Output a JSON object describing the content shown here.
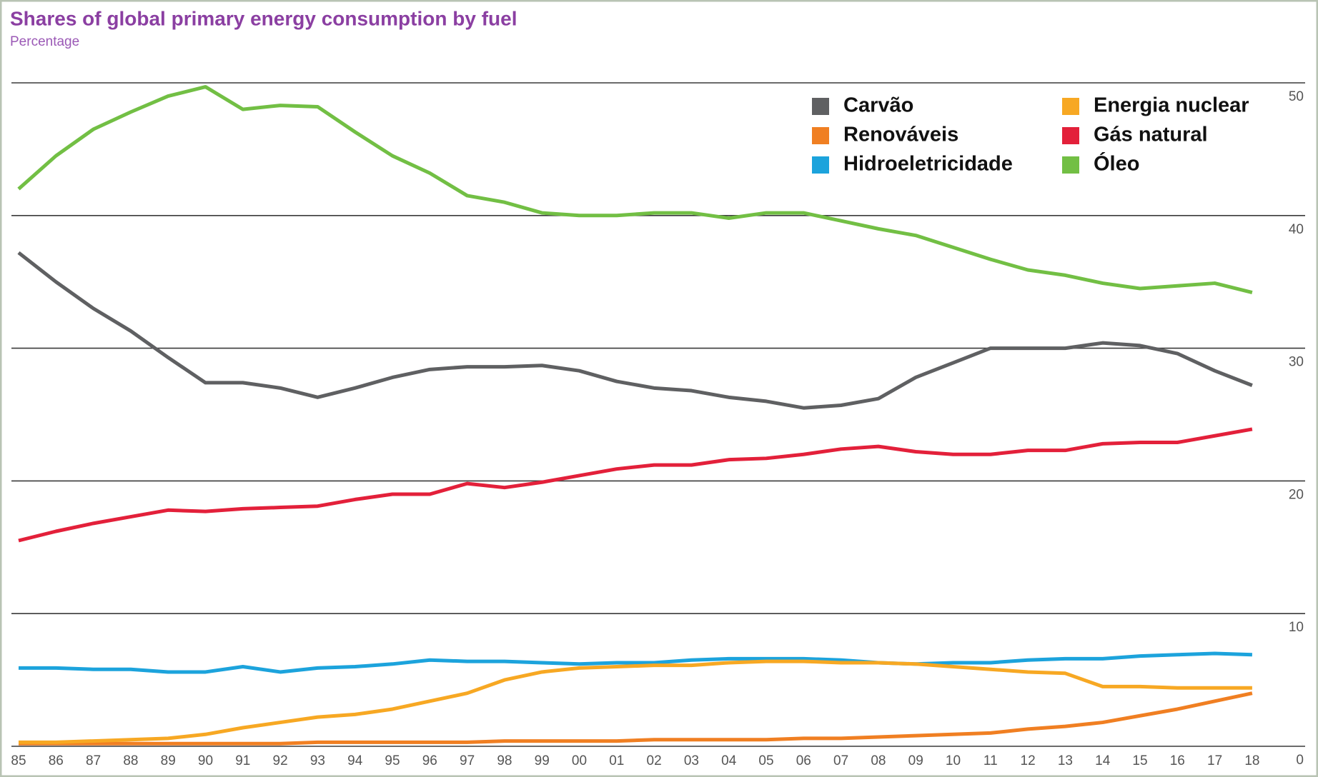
{
  "chart_data": {
    "type": "line",
    "title": "Shares of global primary energy consumption by fuel",
    "subtitle": "Percentage",
    "categories": [
      "85",
      "86",
      "87",
      "88",
      "89",
      "90",
      "91",
      "92",
      "93",
      "94",
      "95",
      "96",
      "97",
      "98",
      "99",
      "00",
      "01",
      "02",
      "03",
      "04",
      "05",
      "06",
      "07",
      "08",
      "09",
      "10",
      "11",
      "12",
      "13",
      "14",
      "15",
      "16",
      "17",
      "18"
    ],
    "series": [
      {
        "name": "Carvão",
        "color": "#5f6062",
        "values": [
          37.2,
          35.0,
          33.0,
          31.3,
          29.3,
          27.4,
          27.4,
          27.0,
          26.3,
          27.0,
          27.8,
          28.4,
          28.6,
          28.6,
          28.7,
          28.3,
          27.5,
          27.0,
          26.8,
          26.3,
          26.0,
          25.5,
          25.7,
          26.2,
          27.8,
          28.9,
          30.0,
          30.0,
          30.0,
          30.4,
          30.2,
          29.6,
          28.3,
          27.2
        ]
      },
      {
        "name": "Renováveis",
        "color": "#f07f22",
        "values": [
          0.2,
          0.2,
          0.2,
          0.2,
          0.2,
          0.2,
          0.2,
          0.2,
          0.3,
          0.3,
          0.3,
          0.3,
          0.3,
          0.4,
          0.4,
          0.4,
          0.4,
          0.5,
          0.5,
          0.5,
          0.5,
          0.6,
          0.6,
          0.7,
          0.8,
          0.9,
          1.0,
          1.3,
          1.5,
          1.8,
          2.3,
          2.8,
          3.4,
          4.0
        ]
      },
      {
        "name": "Hidroeletricidade",
        "color": "#1ca3dc",
        "values": [
          5.9,
          5.9,
          5.8,
          5.8,
          5.6,
          5.6,
          6.0,
          5.6,
          5.9,
          6.0,
          6.2,
          6.5,
          6.4,
          6.4,
          6.3,
          6.2,
          6.3,
          6.3,
          6.5,
          6.6,
          6.6,
          6.6,
          6.5,
          6.3,
          6.2,
          6.3,
          6.3,
          6.5,
          6.6,
          6.6,
          6.8,
          6.9,
          7.0,
          6.9
        ]
      },
      {
        "name": "Energia nuclear",
        "color": "#f7a823",
        "values": [
          0.3,
          0.3,
          0.4,
          0.5,
          0.6,
          0.9,
          1.4,
          1.8,
          2.2,
          2.4,
          2.8,
          3.4,
          4.0,
          5.0,
          5.6,
          5.9,
          6.0,
          6.1,
          6.1,
          6.3,
          6.4,
          6.4,
          6.3,
          6.3,
          6.2,
          6.0,
          5.8,
          5.6,
          5.5,
          4.5,
          4.5,
          4.4,
          4.4,
          4.4
        ]
      },
      {
        "name": "Gás natural",
        "color": "#e3203a",
        "values": [
          15.5,
          16.2,
          16.8,
          17.3,
          17.8,
          17.7,
          17.9,
          18.0,
          18.1,
          18.6,
          19.0,
          19.0,
          19.8,
          19.5,
          19.9,
          20.4,
          20.9,
          21.2,
          21.2,
          21.6,
          21.7,
          22.0,
          22.4,
          22.6,
          22.2,
          22.0,
          22.0,
          22.3,
          22.3,
          22.8,
          22.9,
          22.9,
          23.4,
          23.9
        ]
      },
      {
        "name": "Óleo",
        "color": "#72bf44",
        "values": [
          42.0,
          44.5,
          46.5,
          47.8,
          49.0,
          49.7,
          48.0,
          48.3,
          48.2,
          46.3,
          44.5,
          43.2,
          41.5,
          41.0,
          40.2,
          40.0,
          40.0,
          40.2,
          40.2,
          39.8,
          40.2,
          40.2,
          39.6,
          39.0,
          38.5,
          37.6,
          36.7,
          35.9,
          35.5,
          34.9,
          34.5,
          34.7,
          34.9,
          34.2
        ]
      }
    ],
    "ylim": [
      0,
      50
    ],
    "yticks": [
      0,
      10,
      20,
      30,
      40,
      50
    ],
    "grid": true
  }
}
